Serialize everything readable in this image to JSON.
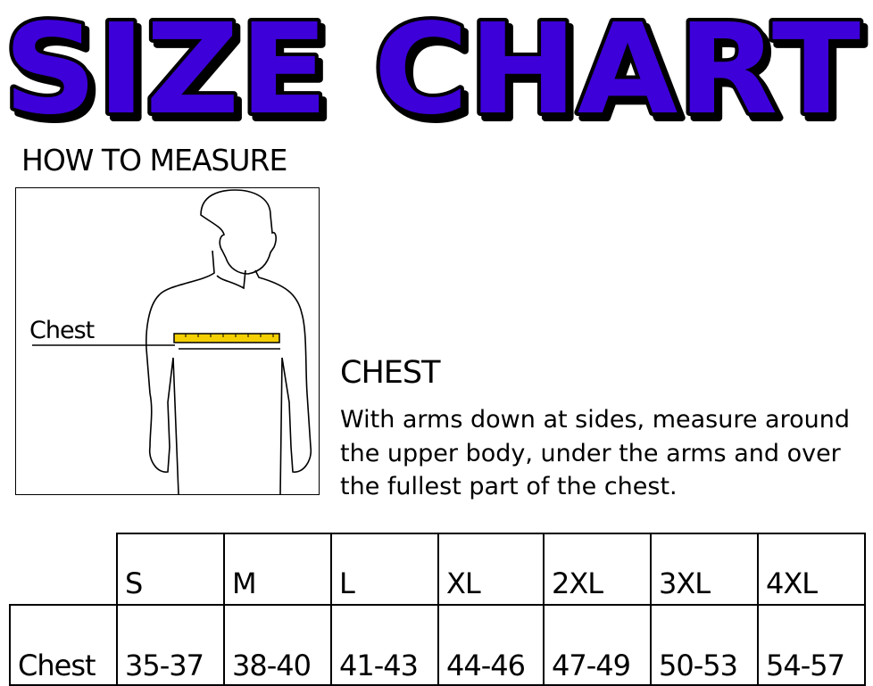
{
  "title": "SIZE CHART",
  "title_color": "#3d00d9",
  "how_to_measure": "HOW TO MEASURE",
  "figure": {
    "chest_label": "Chest",
    "tape_color": "#f5d000"
  },
  "instructions": {
    "heading": "CHEST",
    "text": "With arms down at sides, measure around the upper body, under the arms and over the fullest part of the chest."
  },
  "table": {
    "sizes": [
      "S",
      "M",
      "L",
      "XL",
      "2XL",
      "3XL",
      "4XL"
    ],
    "rows": [
      {
        "label": "Chest",
        "values": [
          "35-37",
          "38-40",
          "41-43",
          "44-46",
          "47-49",
          "50-53",
          "54-57"
        ]
      }
    ]
  }
}
